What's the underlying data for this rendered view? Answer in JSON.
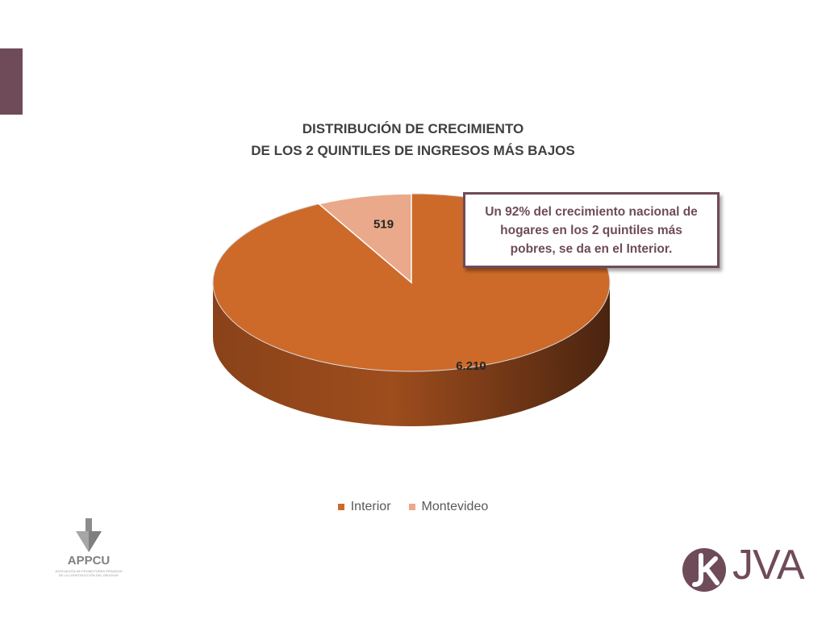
{
  "chart_data": {
    "type": "pie",
    "title": [
      "DISTRIBUCIÓN DE CRECIMIENTO",
      "DE LOS 2 QUINTILES DE INGRESOS MÁS BAJOS"
    ],
    "categories": [
      "Interior",
      "Montevideo"
    ],
    "values": [
      6210,
      519
    ],
    "data_labels": [
      "6.210",
      "519"
    ],
    "colors": [
      "#cd6a2a",
      "#e9a98a"
    ],
    "legend_placement": "bottom",
    "style": "3d"
  },
  "callout": {
    "text": "Un 92% del crecimiento nacional de hogares en los 2 quintiles más pobres, se da en el Interior."
  },
  "logos": {
    "left": {
      "name": "APPCU",
      "subtitle": "ASOCIACIÓN DE PROMOTORES PRIVADOS DE LA CONSTRUCCIÓN DEL URUGUAY"
    },
    "right": {
      "name": "JVA"
    }
  },
  "colors": {
    "accent": "#6f4b5a"
  }
}
